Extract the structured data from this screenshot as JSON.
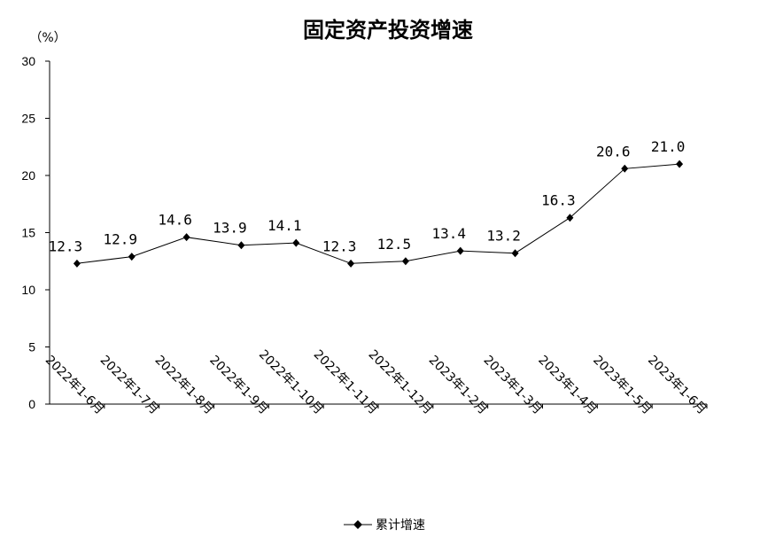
{
  "chart_data": {
    "type": "line",
    "title": "固定资产投资增速",
    "unit_label": "（%）",
    "categories": [
      "2022年1-6月",
      "2022年1-7月",
      "2022年1-8月",
      "2022年1-9月",
      "2022年1-10月",
      "2022年1-11月",
      "2022年1-12月",
      "2023年1-2月",
      "2023年1-3月",
      "2023年1-4月",
      "2023年1-5月",
      "2023年1-6月"
    ],
    "series": [
      {
        "name": "累计增速",
        "values": [
          12.3,
          12.9,
          14.6,
          13.9,
          14.1,
          12.3,
          12.5,
          13.4,
          13.2,
          16.3,
          20.6,
          21.0
        ],
        "labels": [
          "12.3",
          "12.9",
          "14.6",
          "13.9",
          "14.1",
          "12.3",
          "12.5",
          "13.4",
          "13.2",
          "16.3",
          "20.6",
          "21.0"
        ]
      }
    ],
    "ylim": [
      0,
      30
    ],
    "yticks": [
      "0",
      "5",
      "10",
      "15",
      "20",
      "25",
      "30"
    ],
    "ytick_values": [
      0,
      5,
      10,
      15,
      20,
      25,
      30
    ],
    "grid": false,
    "legend_position": "bottom-center",
    "colors": {
      "line": "#000000",
      "marker": "#000000",
      "axis": "#000000"
    },
    "marker": "diamond"
  }
}
